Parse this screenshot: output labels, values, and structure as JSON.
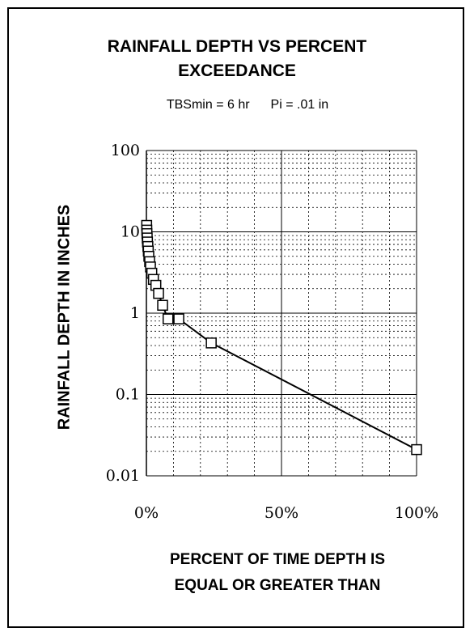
{
  "chart_data": {
    "type": "line",
    "title_lines": [
      "RAINFALL DEPTH VS PERCENT",
      "EXCEEDANCE"
    ],
    "subtitle": "TBSmin = 6 hr",
    "subtitle2": "Pi = .01 in",
    "ylabel": "RAINFALL DEPTH IN INCHES",
    "xlabel_lines": [
      "PERCENT OF TIME DEPTH IS",
      "EQUAL OR GREATER THAN"
    ],
    "x_scale": "linear",
    "y_scale": "log",
    "xlim": [
      0,
      100
    ],
    "ylim": [
      0.01,
      100
    ],
    "x_ticks": [
      {
        "value": 0,
        "label": "0%"
      },
      {
        "value": 50,
        "label": "50%"
      },
      {
        "value": 100,
        "label": "100%"
      }
    ],
    "y_ticks": [
      {
        "value": 0.01,
        "label": "0.01"
      },
      {
        "value": 0.1,
        "label": "0.1"
      },
      {
        "value": 1,
        "label": "1"
      },
      {
        "value": 10,
        "label": "10"
      },
      {
        "value": 100,
        "label": "100"
      }
    ],
    "grid": true,
    "legend": false,
    "series": [
      {
        "marker": "square",
        "color": "#000000",
        "x": [
          0.1,
          0.15,
          0.2,
          0.3,
          0.4,
          0.55,
          0.7,
          0.9,
          1.2,
          1.5,
          2.0,
          2.6,
          3.5,
          4.5,
          6.0,
          8.0,
          12.0,
          24.0,
          100.0
        ],
        "y": [
          12.0,
          10.5,
          9.5,
          8.4,
          7.5,
          6.6,
          5.8,
          5.0,
          4.3,
          3.7,
          3.1,
          2.6,
          2.2,
          1.75,
          1.25,
          0.85,
          0.85,
          0.43,
          0.021
        ]
      }
    ]
  }
}
